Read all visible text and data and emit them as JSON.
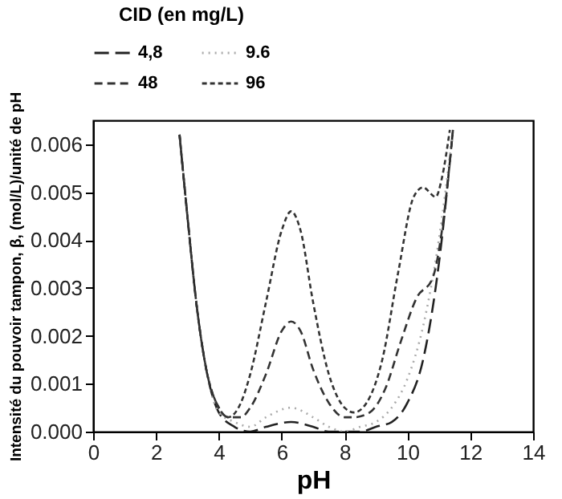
{
  "chart_data": {
    "type": "line",
    "xlabel": "pH",
    "ylabel": "Intensité du pouvoir tampon, β, (mol/L)/unité de pH",
    "legend_title": "CID (en mg/L)",
    "legend": "top",
    "grid": false,
    "marker": "none",
    "xlim": [
      0,
      14
    ],
    "xticks": [
      0,
      2,
      4,
      6,
      8,
      10,
      12,
      14
    ],
    "ylim": [
      0,
      0.0065
    ],
    "yticks": [
      {
        "value": 0,
        "label": "0.000"
      },
      {
        "value": 0.001,
        "label": "0.001"
      },
      {
        "value": 0.002,
        "label": "0.002"
      },
      {
        "value": 0.003,
        "label": "0.003"
      },
      {
        "value": 0.004,
        "label": "0.004"
      },
      {
        "value": 0.005,
        "label": "0.005"
      },
      {
        "value": 0.006,
        "label": "0.006"
      }
    ],
    "series": [
      {
        "name": "4,8",
        "color": "#222222",
        "line_style": "dashed",
        "x": [
          2.75,
          3.0,
          3.3,
          3.6,
          4.0,
          4.5,
          5.0,
          5.5,
          6.3,
          7.0,
          7.5,
          8.0,
          8.5,
          9.0,
          9.5,
          10.0,
          10.5,
          11.0,
          11.45
        ],
        "values": [
          0.0062,
          0.0045,
          0.0026,
          0.0013,
          0.0004,
          0.0001,
          0.0,
          0.0001,
          0.0002,
          0.0001,
          0.0,
          0.0,
          0.0,
          0.0001,
          0.0002,
          0.0006,
          0.0015,
          0.0035,
          0.0063
        ]
      },
      {
        "name": "9.6",
        "color": "#aaaaaa",
        "line_style": "dotted",
        "x": [
          2.75,
          3.0,
          3.3,
          3.6,
          4.0,
          4.5,
          5.0,
          5.5,
          6.3,
          7.0,
          7.5,
          8.0,
          8.5,
          9.0,
          9.5,
          10.0,
          10.5,
          11.0,
          11.45
        ],
        "values": [
          0.0062,
          0.0045,
          0.0026,
          0.0013,
          0.0004,
          0.0002,
          0.0001,
          0.0003,
          0.0005,
          0.0003,
          0.0001,
          0.0,
          0.0001,
          0.0002,
          0.0005,
          0.0011,
          0.0022,
          0.004,
          0.0063
        ]
      },
      {
        "name": "48",
        "color": "#333333",
        "line_style": "dashed",
        "x": [
          2.75,
          3.0,
          3.3,
          3.6,
          4.0,
          4.3,
          4.7,
          5.0,
          5.5,
          6.0,
          6.3,
          6.6,
          7.0,
          7.5,
          8.0,
          8.3,
          8.8,
          9.3,
          9.8,
          10.3,
          10.8,
          11.1,
          11.45
        ],
        "values": [
          0.0062,
          0.0045,
          0.0026,
          0.0013,
          0.0005,
          0.0003,
          0.0003,
          0.0005,
          0.0012,
          0.0021,
          0.0023,
          0.0021,
          0.0013,
          0.0006,
          0.0003,
          0.0003,
          0.0004,
          0.0009,
          0.0019,
          0.0028,
          0.0032,
          0.0042,
          0.0063
        ]
      },
      {
        "name": "96",
        "color": "#333333",
        "line_style": "dashed",
        "x": [
          2.75,
          3.0,
          3.3,
          3.6,
          4.0,
          4.3,
          4.7,
          5.0,
          5.5,
          6.0,
          6.3,
          6.6,
          7.0,
          7.5,
          8.0,
          8.3,
          8.7,
          9.2,
          9.7,
          10.2,
          10.5,
          10.9,
          11.1,
          11.35
        ],
        "values": [
          0.0062,
          0.0045,
          0.0026,
          0.0013,
          0.0005,
          0.0003,
          0.0006,
          0.0012,
          0.0027,
          0.0042,
          0.0046,
          0.0042,
          0.0027,
          0.0012,
          0.0005,
          0.0004,
          0.0006,
          0.0015,
          0.0033,
          0.0049,
          0.0051,
          0.0049,
          0.0053,
          0.0063
        ]
      }
    ]
  }
}
